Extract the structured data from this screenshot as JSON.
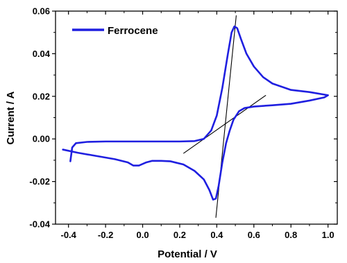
{
  "chart_data": {
    "type": "line",
    "xlabel": "Potential / V",
    "ylabel": "Current / A",
    "xlim": [
      -0.47,
      1.05
    ],
    "ylim": [
      -0.04,
      0.06
    ],
    "xticks": [
      -0.4,
      -0.2,
      0.0,
      0.2,
      0.4,
      0.6,
      0.8,
      1.0
    ],
    "xtick_labels": [
      "-0.4",
      "-0.2",
      "0.0",
      "0.2",
      "0.4",
      "0.6",
      "0.8",
      "1.0"
    ],
    "yticks": [
      -0.04,
      -0.02,
      0.0,
      0.02,
      0.04,
      0.06
    ],
    "ytick_labels": [
      "-0.04",
      "-0.02",
      "0.00",
      "0.02",
      "0.04",
      "0.06"
    ],
    "grid": false,
    "legend_position": "top-left",
    "series": [
      {
        "name": "Ferrocene",
        "color": "#1f1fe0",
        "points": [
          [
            -0.39,
            -0.0105
          ],
          [
            -0.38,
            -0.004
          ],
          [
            -0.36,
            -0.002
          ],
          [
            -0.3,
            -0.0014
          ],
          [
            -0.2,
            -0.0012
          ],
          [
            0.0,
            -0.0012
          ],
          [
            0.2,
            -0.0012
          ],
          [
            0.28,
            -0.001
          ],
          [
            0.33,
            0.0
          ],
          [
            0.37,
            0.004
          ],
          [
            0.4,
            0.011
          ],
          [
            0.43,
            0.024
          ],
          [
            0.46,
            0.04
          ],
          [
            0.48,
            0.05
          ],
          [
            0.495,
            0.0528
          ],
          [
            0.51,
            0.052
          ],
          [
            0.53,
            0.047
          ],
          [
            0.56,
            0.04
          ],
          [
            0.6,
            0.034
          ],
          [
            0.65,
            0.029
          ],
          [
            0.7,
            0.026
          ],
          [
            0.8,
            0.023
          ],
          [
            0.9,
            0.022
          ],
          [
            1.0,
            0.0205
          ],
          [
            0.98,
            0.0195
          ],
          [
            0.9,
            0.018
          ],
          [
            0.8,
            0.0165
          ],
          [
            0.7,
            0.0158
          ],
          [
            0.6,
            0.0152
          ],
          [
            0.55,
            0.0145
          ],
          [
            0.52,
            0.013
          ],
          [
            0.49,
            0.009
          ],
          [
            0.47,
            0.004
          ],
          [
            0.45,
            -0.002
          ],
          [
            0.43,
            -0.011
          ],
          [
            0.41,
            -0.022
          ],
          [
            0.395,
            -0.028
          ],
          [
            0.38,
            -0.0285
          ],
          [
            0.36,
            -0.024
          ],
          [
            0.33,
            -0.019
          ],
          [
            0.28,
            -0.015
          ],
          [
            0.22,
            -0.012
          ],
          [
            0.15,
            -0.0105
          ],
          [
            0.1,
            -0.0103
          ],
          [
            0.05,
            -0.0103
          ],
          [
            0.02,
            -0.011
          ],
          [
            -0.02,
            -0.0125
          ],
          [
            -0.05,
            -0.0125
          ],
          [
            -0.08,
            -0.011
          ],
          [
            -0.15,
            -0.0095
          ],
          [
            -0.25,
            -0.008
          ],
          [
            -0.35,
            -0.0065
          ],
          [
            -0.43,
            -0.005
          ]
        ]
      }
    ],
    "fit_lines": [
      {
        "color": "#000000",
        "points": [
          [
            0.395,
            -0.037
          ],
          [
            0.505,
            0.058
          ]
        ]
      },
      {
        "color": "#000000",
        "points": [
          [
            0.22,
            -0.0068
          ],
          [
            0.665,
            0.0205
          ]
        ]
      }
    ]
  }
}
